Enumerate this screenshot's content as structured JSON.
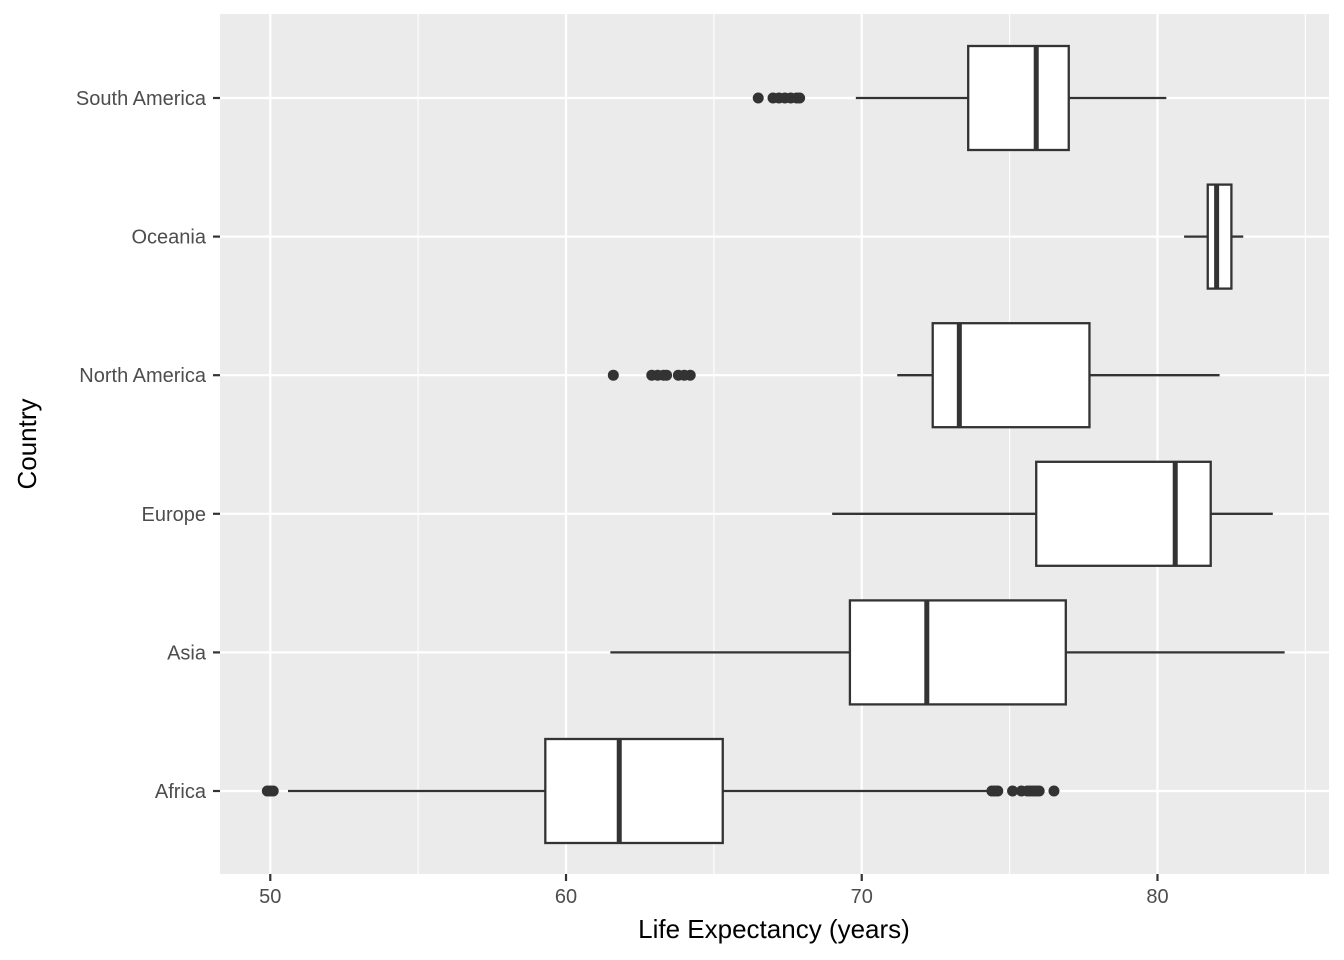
{
  "chart_data": {
    "type": "boxplot",
    "orientation": "horizontal",
    "title": "",
    "xlabel": "Life Expectancy (years)",
    "ylabel": "Country",
    "xlim": [
      48.3,
      85.8
    ],
    "xticks": [
      50,
      60,
      70,
      80
    ],
    "grid": true,
    "legend": "none",
    "colors": {
      "panel": "#ebebeb",
      "grid": "#ffffff",
      "box_fill": "#ffffff",
      "box_stroke": "#333333",
      "outlier": "#333333",
      "tick_text": "#4d4d4d"
    },
    "categories": [
      "Africa",
      "Asia",
      "Europe",
      "North America",
      "Oceania",
      "South America"
    ],
    "boxes": [
      {
        "category": "Africa",
        "whisker_low": 50.6,
        "q1": 59.3,
        "median": 61.8,
        "q3": 65.3,
        "whisker_high": 74.3,
        "outliers": [
          49.9,
          50.0,
          50.1,
          74.4,
          74.5,
          74.6,
          75.1,
          75.4,
          75.6,
          75.7,
          75.8,
          75.9,
          76.0,
          76.5
        ]
      },
      {
        "category": "Asia",
        "whisker_low": 61.5,
        "q1": 69.6,
        "median": 72.2,
        "q3": 76.9,
        "whisker_high": 84.3,
        "outliers": []
      },
      {
        "category": "Europe",
        "whisker_low": 69.0,
        "q1": 75.9,
        "median": 80.6,
        "q3": 81.8,
        "whisker_high": 83.9,
        "outliers": []
      },
      {
        "category": "North America",
        "whisker_low": 71.2,
        "q1": 72.4,
        "median": 73.3,
        "q3": 77.7,
        "whisker_high": 82.1,
        "outliers": [
          61.6,
          62.9,
          63.1,
          63.3,
          63.4,
          63.8,
          64.0,
          64.2
        ]
      },
      {
        "category": "Oceania",
        "whisker_low": 80.9,
        "q1": 81.7,
        "median": 82.0,
        "q3": 82.5,
        "whisker_high": 82.9,
        "outliers": []
      },
      {
        "category": "South America",
        "whisker_low": 69.8,
        "q1": 73.6,
        "median": 75.9,
        "q3": 77.0,
        "whisker_high": 80.3,
        "outliers": [
          66.5,
          67.0,
          67.2,
          67.4,
          67.6,
          67.8,
          67.9
        ]
      }
    ]
  }
}
